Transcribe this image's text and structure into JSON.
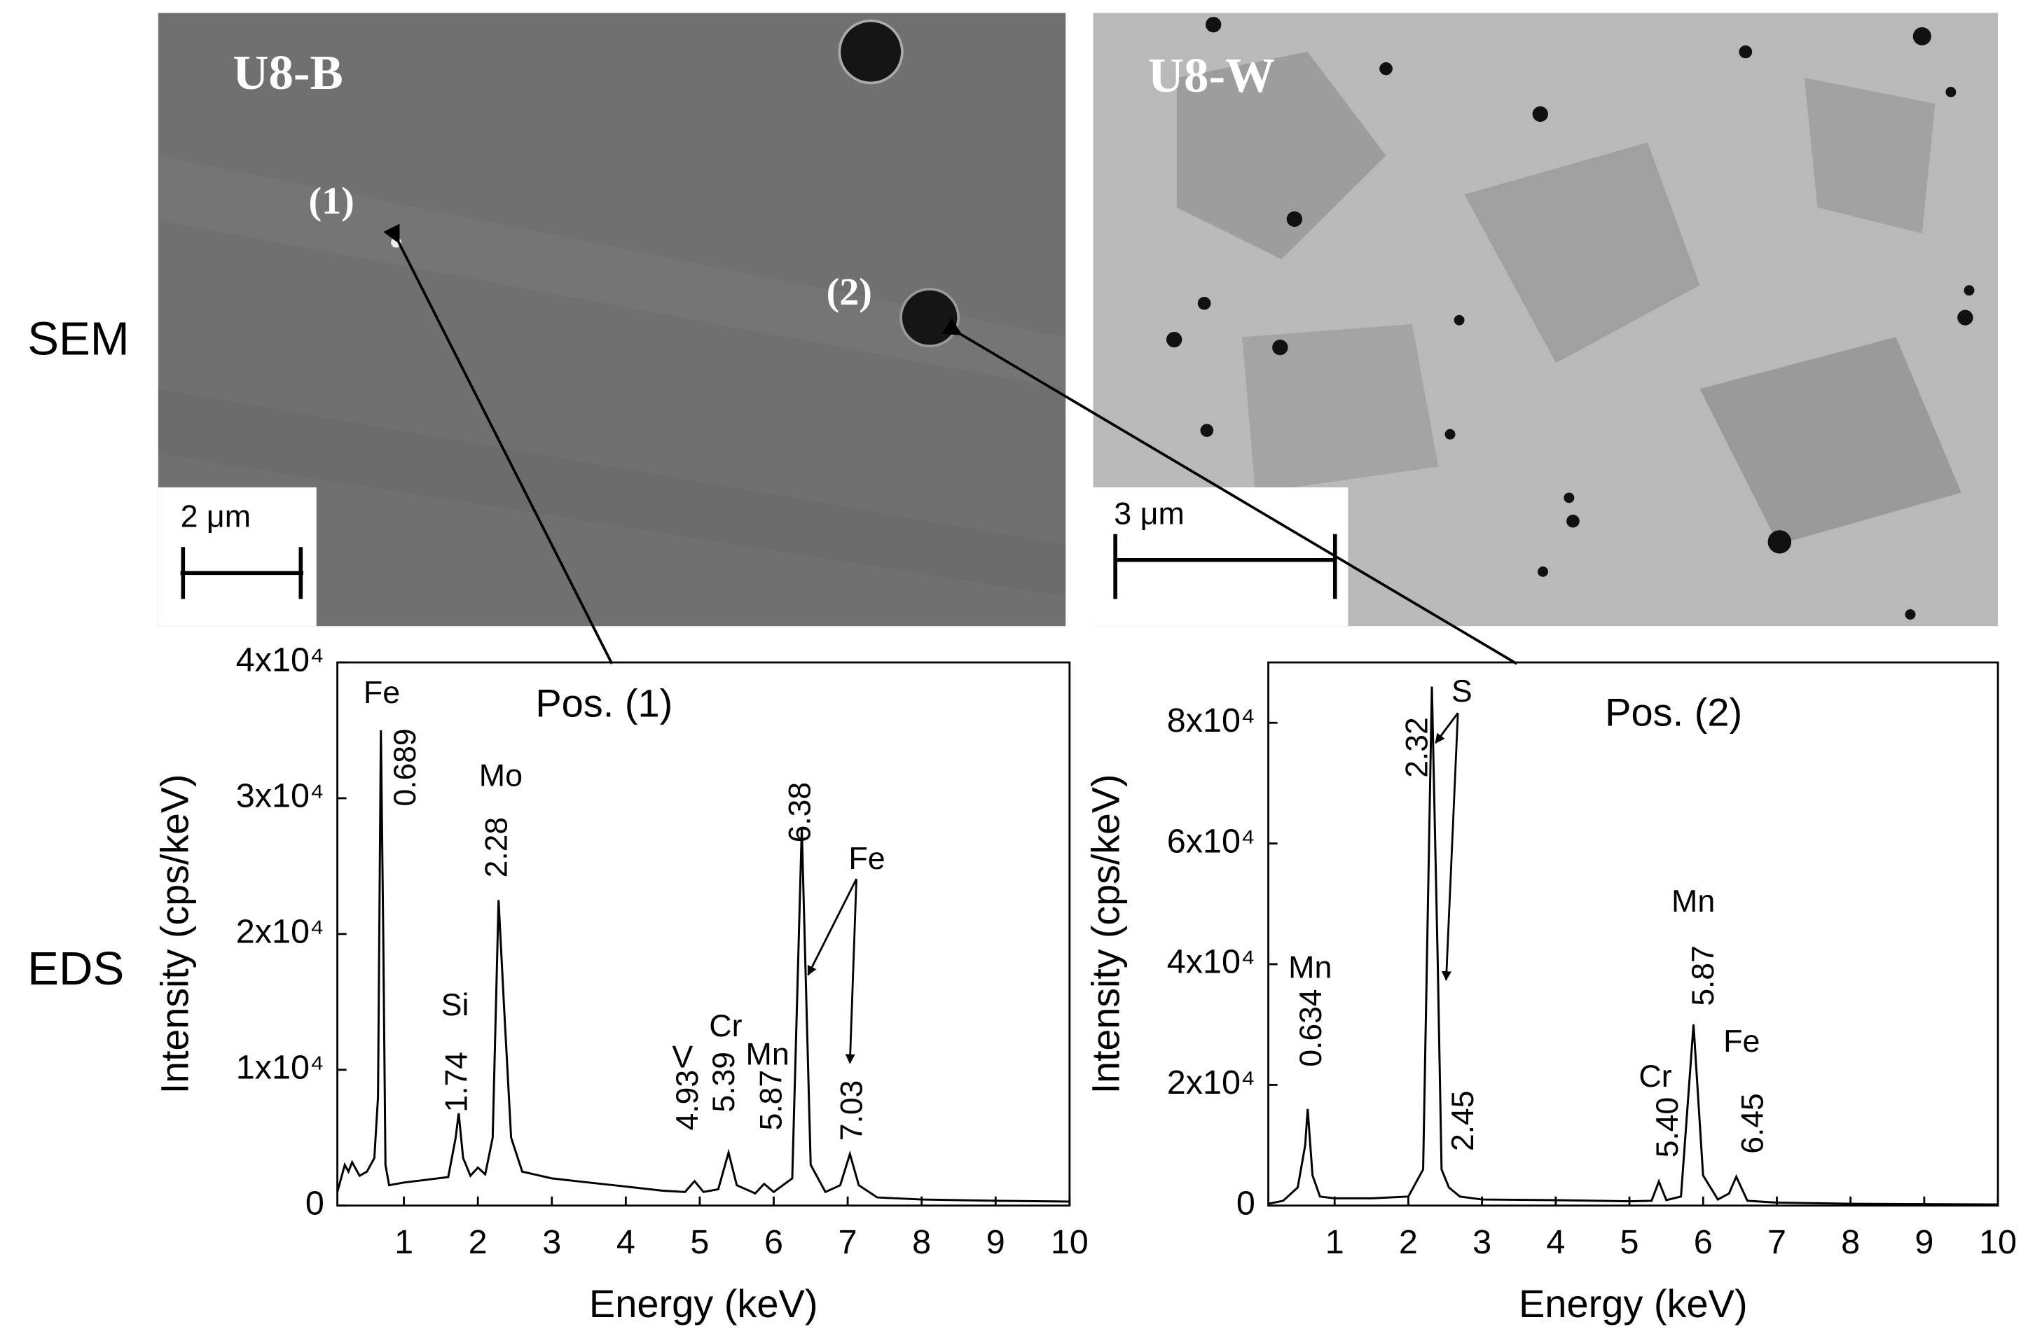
{
  "row_labels": [
    "SEM",
    "EDS"
  ],
  "images": [
    {
      "title": "U8-B",
      "scale": "2 μm",
      "points": [
        "(1)",
        "(2)"
      ]
    },
    {
      "title": "U8-W",
      "scale": "3 μm"
    }
  ],
  "chart_data": [
    {
      "type": "line",
      "title": "Pos. (1)",
      "xlabel": "Energy (keV)",
      "ylabel": "Intensity (cps/keV)",
      "color": "#000000",
      "xlim": [
        0.1,
        10
      ],
      "ylim": [
        0,
        40000
      ],
      "xticks": [
        1,
        2,
        3,
        4,
        5,
        6,
        7,
        8,
        9,
        10
      ],
      "yticks": [
        0,
        {
          "value": 10000,
          "label": "1x10⁴"
        },
        {
          "value": 20000,
          "label": "2x10⁴"
        },
        {
          "value": 30000,
          "label": "3x10⁴"
        },
        {
          "value": 40000,
          "label": "4x10⁴"
        }
      ],
      "x": [
        0.1,
        0.2,
        0.25,
        0.3,
        0.4,
        0.5,
        0.6,
        0.65,
        0.689,
        0.72,
        0.75,
        0.8,
        1.0,
        1.3,
        1.6,
        1.7,
        1.74,
        1.8,
        1.9,
        2.0,
        2.1,
        2.2,
        2.28,
        2.35,
        2.45,
        2.6,
        3.0,
        3.5,
        4.0,
        4.5,
        4.8,
        4.93,
        5.05,
        5.25,
        5.39,
        5.5,
        5.75,
        5.87,
        6.0,
        6.25,
        6.38,
        6.5,
        6.7,
        6.9,
        7.03,
        7.15,
        7.4,
        8,
        9,
        10
      ],
      "values": [
        1000,
        3000,
        2500,
        3200,
        2200,
        2500,
        3500,
        8000,
        35000,
        20000,
        3000,
        1500,
        1700,
        1900,
        2100,
        5000,
        6800,
        3500,
        2200,
        2800,
        2300,
        5000,
        22500,
        15000,
        5000,
        2500,
        2000,
        1700,
        1400,
        1100,
        1000,
        1800,
        1000,
        1200,
        3900,
        1500,
        900,
        1600,
        1000,
        2000,
        27800,
        3000,
        1000,
        1500,
        3800,
        1500,
        600,
        450,
        350,
        300
      ],
      "peaks": [
        {
          "energy": 0.689,
          "label": "0.689"
        },
        {
          "energy": 1.74,
          "label": "1.74"
        },
        {
          "energy": 2.28,
          "label": "2.28"
        },
        {
          "energy": 4.93,
          "label": "4.93"
        },
        {
          "energy": 5.39,
          "label": "5.39"
        },
        {
          "energy": 5.87,
          "label": "5.87"
        },
        {
          "energy": 6.38,
          "label": "6.38"
        },
        {
          "energy": 7.03,
          "label": "7.03"
        }
      ],
      "elements": [
        "Fe",
        "Si",
        "Mo",
        "V",
        "Cr",
        "Mn",
        "Fe"
      ]
    },
    {
      "type": "line",
      "title": "Pos. (2)",
      "xlabel": "Energy (keV)",
      "ylabel": "Intensity (cps/keV)",
      "color": "#000000",
      "xlim": [
        0.1,
        10
      ],
      "ylim": [
        0,
        90000
      ],
      "xticks": [
        1,
        2,
        3,
        4,
        5,
        6,
        7,
        8,
        9,
        10
      ],
      "yticks": [
        0,
        {
          "value": 20000,
          "label": "2x10⁴"
        },
        {
          "value": 40000,
          "label": "4x10⁴"
        },
        {
          "value": 60000,
          "label": "6x10⁴"
        },
        {
          "value": 80000,
          "label": "8x10⁴"
        }
      ],
      "x": [
        0.1,
        0.3,
        0.5,
        0.6,
        0.634,
        0.7,
        0.8,
        1,
        1.5,
        2,
        2.2,
        2.32,
        2.4,
        2.45,
        2.55,
        2.7,
        3,
        4,
        5,
        5.3,
        5.4,
        5.5,
        5.7,
        5.87,
        6,
        6.2,
        6.35,
        6.45,
        6.6,
        7,
        8,
        10
      ],
      "values": [
        300,
        800,
        3000,
        10000,
        16000,
        5000,
        1500,
        1200,
        1200,
        1500,
        6000,
        86000,
        40000,
        6000,
        3000,
        1500,
        1000,
        900,
        700,
        800,
        4000,
        900,
        1500,
        30000,
        5000,
        1000,
        2000,
        4800,
        800,
        500,
        300,
        200
      ],
      "peaks": [
        {
          "energy": 0.634,
          "label": "0.634"
        },
        {
          "energy": 2.32,
          "label": "2.32"
        },
        {
          "energy": 2.45,
          "label": "2.45"
        },
        {
          "energy": 5.4,
          "label": "5.40"
        },
        {
          "energy": 5.87,
          "label": "5.87"
        },
        {
          "energy": 6.45,
          "label": "6.45"
        }
      ],
      "elements": [
        "Mn",
        "S",
        "Cr",
        "Mn",
        "Fe"
      ]
    }
  ]
}
